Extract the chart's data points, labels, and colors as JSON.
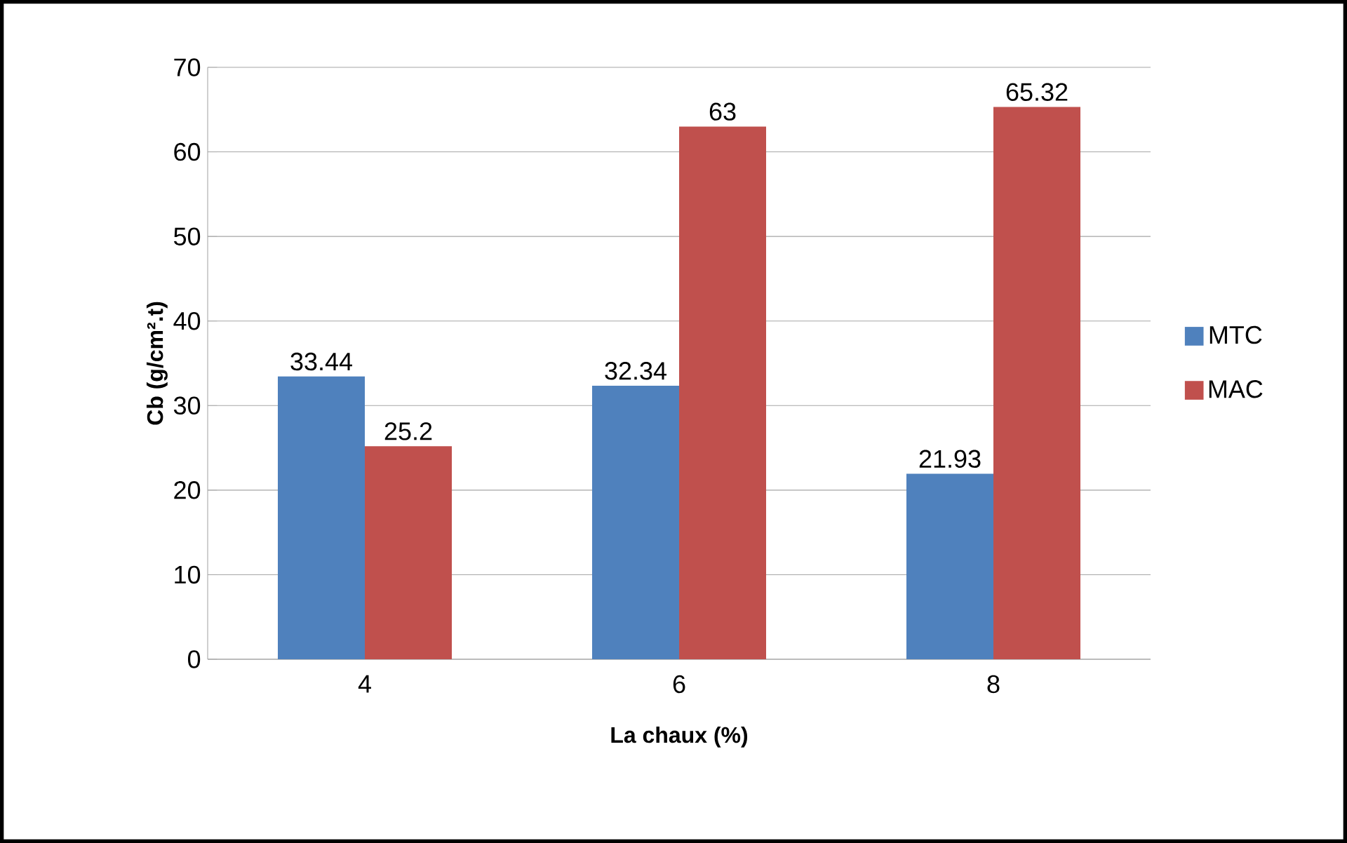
{
  "chart_data": {
    "type": "bar",
    "xlabel": "La chaux (%)",
    "ylabel": "Cb (g/cm².t)",
    "categories": [
      "4",
      "6",
      "8"
    ],
    "series": [
      {
        "name": "MTC",
        "color": "#4f81bd",
        "values": [
          33.44,
          32.34,
          21.93
        ]
      },
      {
        "name": "MAC",
        "color": "#c0504d",
        "values": [
          25.2,
          63,
          65.32
        ]
      }
    ],
    "ylim": [
      0,
      70
    ],
    "yticks": [
      0,
      10,
      20,
      30,
      40,
      50,
      60,
      70
    ],
    "grid": "y",
    "legend": "right",
    "data_labels": true
  }
}
